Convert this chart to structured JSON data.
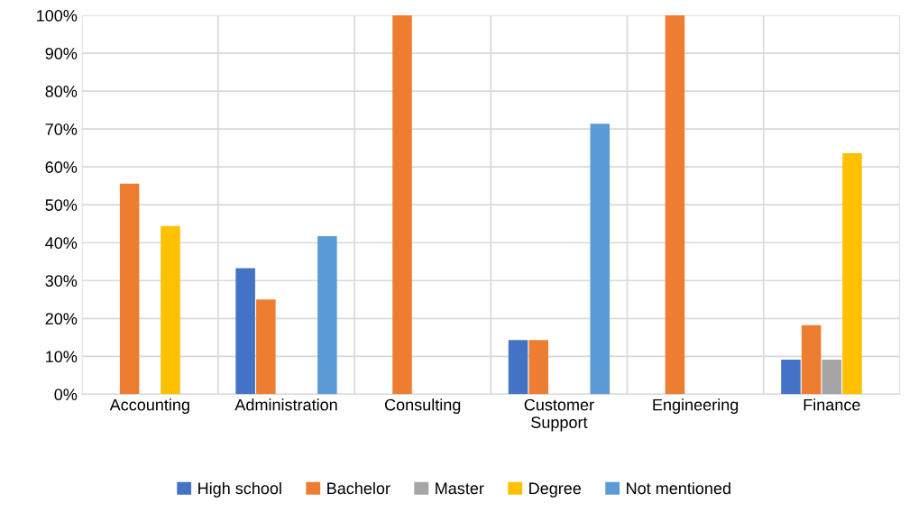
{
  "chart_data": {
    "type": "bar",
    "categories": [
      "Accounting",
      "Administration",
      "Consulting",
      "Customer Support",
      "Engineering",
      "Finance"
    ],
    "series": [
      {
        "name": "High school",
        "color": "#4472c4",
        "values": [
          0,
          33.3,
          0,
          14.3,
          0,
          9.1
        ]
      },
      {
        "name": "Bachelor",
        "color": "#ed7d31",
        "values": [
          55.6,
          25,
          100,
          14.3,
          100,
          18.2
        ]
      },
      {
        "name": "Master",
        "color": "#a5a5a5",
        "values": [
          0,
          0,
          0,
          0,
          0,
          9.1
        ]
      },
      {
        "name": "Degree",
        "color": "#ffc000",
        "values": [
          44.4,
          0,
          0,
          0,
          0,
          63.6
        ]
      },
      {
        "name": "Not mentioned",
        "color": "#5b9bd5",
        "values": [
          0,
          41.7,
          0,
          71.4,
          0,
          0
        ]
      }
    ],
    "ylim": [
      0,
      100
    ],
    "yticks": [
      {
        "value": 0,
        "label": "0%"
      },
      {
        "value": 10,
        "label": "10%"
      },
      {
        "value": 20,
        "label": "20%"
      },
      {
        "value": 30,
        "label": "30%"
      },
      {
        "value": 40,
        "label": "40%"
      },
      {
        "value": 50,
        "label": "50%"
      },
      {
        "value": 60,
        "label": "60%"
      },
      {
        "value": 70,
        "label": "70%"
      },
      {
        "value": 80,
        "label": "80%"
      },
      {
        "value": 90,
        "label": "90%"
      },
      {
        "value": 100,
        "label": "100%"
      }
    ],
    "grid": true,
    "legend": "bottom"
  }
}
